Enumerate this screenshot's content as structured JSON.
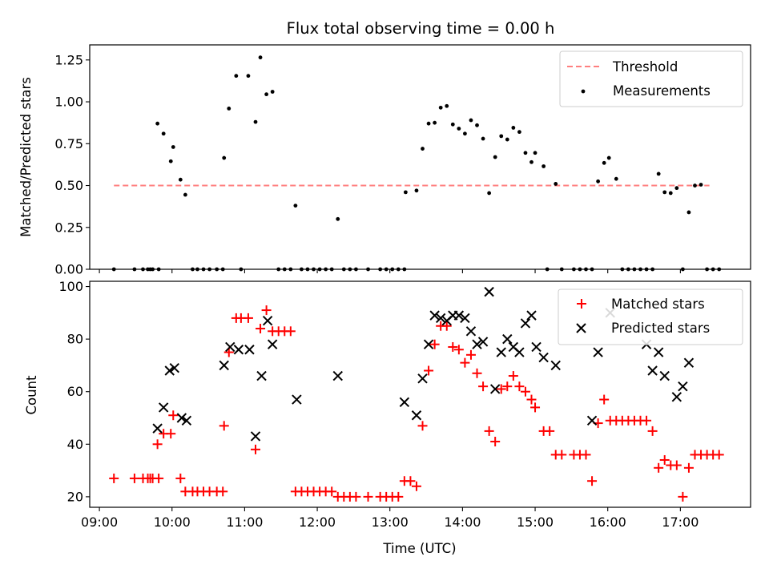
{
  "figure": {
    "title": "Flux total observing time = 0.00 h",
    "xlabel": "Time (UTC)"
  },
  "chart_data": [
    {
      "type": "scatter",
      "ylabel": "Matched/Predicted stars",
      "ylim": [
        0,
        1.34
      ],
      "xlim": [
        "08:52",
        "17:58"
      ],
      "x_ticks": [
        "09:00",
        "10:00",
        "11:00",
        "12:00",
        "13:00",
        "14:00",
        "15:00",
        "16:00",
        "17:00"
      ],
      "y_ticks": [
        "0.00",
        "0.25",
        "0.50",
        "0.75",
        "1.00",
        "1.25"
      ],
      "legend_position": "upper right",
      "threshold": {
        "name": "Threshold",
        "value": 0.5,
        "x_start": "09:12",
        "x_end": "17:24",
        "color": "#ff7f7f",
        "style": "dashed"
      },
      "series": [
        {
          "name": "Measurements",
          "color": "#000000",
          "marker": "dot",
          "points": [
            [
              "09:12",
              0
            ],
            [
              "09:29",
              0
            ],
            [
              "09:36",
              0
            ],
            [
              "09:40",
              0
            ],
            [
              "09:42",
              0
            ],
            [
              "09:44",
              0
            ],
            [
              "09:49",
              0
            ],
            [
              "09:48",
              0.87
            ],
            [
              "09:53",
              0.81
            ],
            [
              "09:59",
              0.645
            ],
            [
              "10:01",
              0.73
            ],
            [
              "10:07",
              0.535
            ],
            [
              "10:11",
              0.445
            ],
            [
              "10:17",
              0
            ],
            [
              "10:21",
              0
            ],
            [
              "10:26",
              0
            ],
            [
              "10:31",
              0
            ],
            [
              "10:37",
              0
            ],
            [
              "10:42",
              0
            ],
            [
              "10:43",
              0.665
            ],
            [
              "10:47",
              0.96
            ],
            [
              "10:53",
              1.155
            ],
            [
              "10:57",
              0
            ],
            [
              "11:03",
              1.155
            ],
            [
              "11:09",
              0.88
            ],
            [
              "11:13",
              1.265
            ],
            [
              "11:18",
              1.045
            ],
            [
              "11:23",
              1.06
            ],
            [
              "11:28",
              0
            ],
            [
              "11:33",
              0
            ],
            [
              "11:38",
              0
            ],
            [
              "11:42",
              0.38
            ],
            [
              "11:47",
              0
            ],
            [
              "11:52",
              0
            ],
            [
              "11:57",
              0
            ],
            [
              "12:02",
              0
            ],
            [
              "12:07",
              0
            ],
            [
              "12:12",
              0
            ],
            [
              "12:17",
              0.3
            ],
            [
              "12:22",
              0
            ],
            [
              "12:27",
              0
            ],
            [
              "12:32",
              0
            ],
            [
              "12:42",
              0
            ],
            [
              "12:52",
              0
            ],
            [
              "12:57",
              0
            ],
            [
              "13:02",
              0
            ],
            [
              "13:07",
              0
            ],
            [
              "13:12",
              0
            ],
            [
              "13:13",
              0.46
            ],
            [
              "13:22",
              0.47
            ],
            [
              "13:27",
              0.72
            ],
            [
              "13:32",
              0.87
            ],
            [
              "13:37",
              0.875
            ],
            [
              "13:42",
              0.965
            ],
            [
              "13:47",
              0.975
            ],
            [
              "13:52",
              0.865
            ],
            [
              "13:57",
              0.84
            ],
            [
              "14:02",
              0.81
            ],
            [
              "14:07",
              0.89
            ],
            [
              "14:12",
              0.86
            ],
            [
              "14:17",
              0.78
            ],
            [
              "14:22",
              0.455
            ],
            [
              "14:27",
              0.67
            ],
            [
              "14:32",
              0.795
            ],
            [
              "14:37",
              0.775
            ],
            [
              "14:42",
              0.845
            ],
            [
              "14:47",
              0.82
            ],
            [
              "14:52",
              0.695
            ],
            [
              "14:57",
              0.64
            ],
            [
              "15:00",
              0.695
            ],
            [
              "15:07",
              0.615
            ],
            [
              "15:10",
              0
            ],
            [
              "15:17",
              0.51
            ],
            [
              "15:22",
              0
            ],
            [
              "15:32",
              0
            ],
            [
              "15:37",
              0
            ],
            [
              "15:42",
              0
            ],
            [
              "15:47",
              0
            ],
            [
              "15:52",
              0.525
            ],
            [
              "15:57",
              0.635
            ],
            [
              "16:01",
              0.665
            ],
            [
              "16:07",
              0.54
            ],
            [
              "16:12",
              0
            ],
            [
              "16:17",
              0
            ],
            [
              "16:22",
              0
            ],
            [
              "16:27",
              0
            ],
            [
              "16:32",
              0
            ],
            [
              "16:37",
              0
            ],
            [
              "16:42",
              0.57
            ],
            [
              "16:47",
              0.46
            ],
            [
              "16:52",
              0.455
            ],
            [
              "16:57",
              0.485
            ],
            [
              "17:02",
              0
            ],
            [
              "17:07",
              0.34
            ],
            [
              "17:12",
              0.5
            ],
            [
              "17:17",
              0.505
            ],
            [
              "17:22",
              0
            ],
            [
              "17:27",
              0
            ],
            [
              "17:32",
              0
            ]
          ]
        }
      ]
    },
    {
      "type": "scatter",
      "ylabel": "Count",
      "ylim": [
        16,
        102
      ],
      "xlim": [
        "08:52",
        "17:58"
      ],
      "x_ticks": [
        "09:00",
        "10:00",
        "11:00",
        "12:00",
        "13:00",
        "14:00",
        "15:00",
        "16:00",
        "17:00"
      ],
      "y_ticks": [
        "20",
        "40",
        "60",
        "80",
        "100"
      ],
      "legend_position": "upper right",
      "series": [
        {
          "name": "Matched stars",
          "color": "#ff0000",
          "marker": "plus",
          "points": [
            [
              "09:12",
              27
            ],
            [
              "09:29",
              27
            ],
            [
              "09:36",
              27
            ],
            [
              "09:40",
              27
            ],
            [
              "09:42",
              27
            ],
            [
              "09:44",
              27
            ],
            [
              "09:49",
              27
            ],
            [
              "09:48",
              40
            ],
            [
              "09:53",
              44
            ],
            [
              "09:59",
              44
            ],
            [
              "10:01",
              51
            ],
            [
              "10:07",
              27
            ],
            [
              "10:11",
              22
            ],
            [
              "10:17",
              22
            ],
            [
              "10:21",
              22
            ],
            [
              "10:26",
              22
            ],
            [
              "10:31",
              22
            ],
            [
              "10:37",
              22
            ],
            [
              "10:42",
              22
            ],
            [
              "10:43",
              47
            ],
            [
              "10:47",
              75
            ],
            [
              "10:53",
              88
            ],
            [
              "10:57",
              88
            ],
            [
              "11:03",
              88
            ],
            [
              "11:09",
              38
            ],
            [
              "11:13",
              84
            ],
            [
              "11:18",
              91
            ],
            [
              "11:23",
              83
            ],
            [
              "11:28",
              83
            ],
            [
              "11:33",
              83
            ],
            [
              "11:38",
              83
            ],
            [
              "11:42",
              22
            ],
            [
              "11:47",
              22
            ],
            [
              "11:52",
              22
            ],
            [
              "11:57",
              22
            ],
            [
              "12:02",
              22
            ],
            [
              "12:07",
              22
            ],
            [
              "12:12",
              22
            ],
            [
              "12:17",
              20
            ],
            [
              "12:22",
              20
            ],
            [
              "12:27",
              20
            ],
            [
              "12:32",
              20
            ],
            [
              "12:42",
              20
            ],
            [
              "12:52",
              20
            ],
            [
              "12:57",
              20
            ],
            [
              "13:02",
              20
            ],
            [
              "13:07",
              20
            ],
            [
              "13:12",
              26
            ],
            [
              "13:17",
              26
            ],
            [
              "13:22",
              24
            ],
            [
              "13:27",
              47
            ],
            [
              "13:32",
              68
            ],
            [
              "13:37",
              78
            ],
            [
              "13:42",
              85
            ],
            [
              "13:47",
              85
            ],
            [
              "13:52",
              77
            ],
            [
              "13:57",
              76
            ],
            [
              "14:02",
              71
            ],
            [
              "14:07",
              74
            ],
            [
              "14:12",
              67
            ],
            [
              "14:17",
              62
            ],
            [
              "14:22",
              45
            ],
            [
              "14:27",
              41
            ],
            [
              "14:32",
              61
            ],
            [
              "14:37",
              62
            ],
            [
              "14:42",
              66
            ],
            [
              "14:47",
              62
            ],
            [
              "14:52",
              60
            ],
            [
              "14:57",
              57
            ],
            [
              "15:00",
              54
            ],
            [
              "15:07",
              45
            ],
            [
              "15:12",
              45
            ],
            [
              "15:17",
              36
            ],
            [
              "15:22",
              36
            ],
            [
              "15:32",
              36
            ],
            [
              "15:37",
              36
            ],
            [
              "15:42",
              36
            ],
            [
              "15:47",
              26
            ],
            [
              "15:52",
              48
            ],
            [
              "15:57",
              57
            ],
            [
              "16:02",
              49
            ],
            [
              "16:07",
              49
            ],
            [
              "16:12",
              49
            ],
            [
              "16:17",
              49
            ],
            [
              "16:22",
              49
            ],
            [
              "16:27",
              49
            ],
            [
              "16:32",
              49
            ],
            [
              "16:37",
              45
            ],
            [
              "16:42",
              31
            ],
            [
              "16:47",
              34
            ],
            [
              "16:52",
              32
            ],
            [
              "16:57",
              32
            ],
            [
              "17:02",
              20
            ],
            [
              "17:07",
              31
            ],
            [
              "17:12",
              36
            ],
            [
              "17:17",
              36
            ],
            [
              "17:22",
              36
            ],
            [
              "17:27",
              36
            ],
            [
              "17:32",
              36
            ]
          ]
        },
        {
          "name": "Predicted stars",
          "color": "#000000",
          "marker": "x",
          "points": [
            [
              "09:48",
              46
            ],
            [
              "09:53",
              54
            ],
            [
              "09:58",
              68
            ],
            [
              "10:02",
              69
            ],
            [
              "10:08",
              50
            ],
            [
              "10:12",
              49
            ],
            [
              "10:43",
              70
            ],
            [
              "10:48",
              77
            ],
            [
              "10:55",
              76
            ],
            [
              "11:04",
              76
            ],
            [
              "11:09",
              43
            ],
            [
              "11:14",
              66
            ],
            [
              "11:19",
              87
            ],
            [
              "11:23",
              78
            ],
            [
              "11:43",
              57
            ],
            [
              "12:17",
              66
            ],
            [
              "13:12",
              56
            ],
            [
              "13:22",
              51
            ],
            [
              "13:27",
              65
            ],
            [
              "13:32",
              78
            ],
            [
              "13:37",
              89
            ],
            [
              "13:42",
              88
            ],
            [
              "13:47",
              87
            ],
            [
              "13:52",
              89
            ],
            [
              "13:57",
              89
            ],
            [
              "14:02",
              88
            ],
            [
              "14:07",
              83
            ],
            [
              "14:12",
              78
            ],
            [
              "14:17",
              79
            ],
            [
              "14:22",
              98
            ],
            [
              "14:27",
              61
            ],
            [
              "14:32",
              75
            ],
            [
              "14:37",
              80
            ],
            [
              "14:42",
              77
            ],
            [
              "14:47",
              75
            ],
            [
              "14:52",
              86
            ],
            [
              "14:57",
              89
            ],
            [
              "15:01",
              77
            ],
            [
              "15:07",
              73
            ],
            [
              "15:17",
              70
            ],
            [
              "15:47",
              49
            ],
            [
              "15:52",
              75
            ],
            [
              "16:02",
              90
            ],
            [
              "16:32",
              78
            ],
            [
              "16:37",
              68
            ],
            [
              "16:42",
              75
            ],
            [
              "16:47",
              66
            ],
            [
              "16:57",
              58
            ],
            [
              "17:02",
              62
            ],
            [
              "17:07",
              71
            ]
          ]
        }
      ]
    }
  ]
}
